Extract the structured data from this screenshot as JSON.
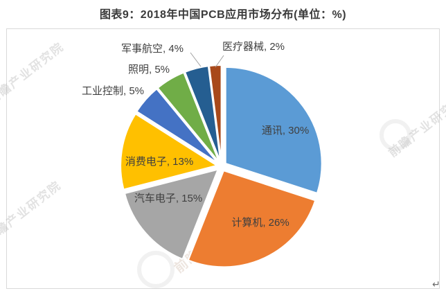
{
  "title": "图表9：2018年中国PCB应用市场分布(单位：%)",
  "chart_data": {
    "type": "pie",
    "title": "图表9：2018年中国PCB应用市场分布(单位：%)",
    "unit": "%",
    "start_angle": "12-oclock-clockwise",
    "exploded": true,
    "legend": false,
    "label_format": "{label}, {value}%",
    "slices": [
      {
        "label": "通讯",
        "value": 30,
        "color": "#5B9BD5",
        "label_position": "inside"
      },
      {
        "label": "计算机",
        "value": 26,
        "color": "#ED7D31",
        "label_position": "inside"
      },
      {
        "label": "汽车电子",
        "value": 15,
        "color": "#A6A6A6",
        "label_position": "inside"
      },
      {
        "label": "消费电子",
        "value": 13,
        "color": "#FFC000",
        "label_position": "inside"
      },
      {
        "label": "工业控制",
        "value": 5,
        "color": "#4472C4",
        "label_position": "outside"
      },
      {
        "label": "照明",
        "value": 5,
        "color": "#70AD47",
        "label_position": "outside"
      },
      {
        "label": "军事航空",
        "value": 4,
        "color": "#255E91",
        "label_position": "outside"
      },
      {
        "label": "医疗器械",
        "value": 2,
        "color": "#A8491A",
        "label_position": "outside"
      }
    ]
  },
  "watermark": {
    "text": "前瞻产业研究院"
  },
  "page": {
    "return_mark": "↵"
  }
}
